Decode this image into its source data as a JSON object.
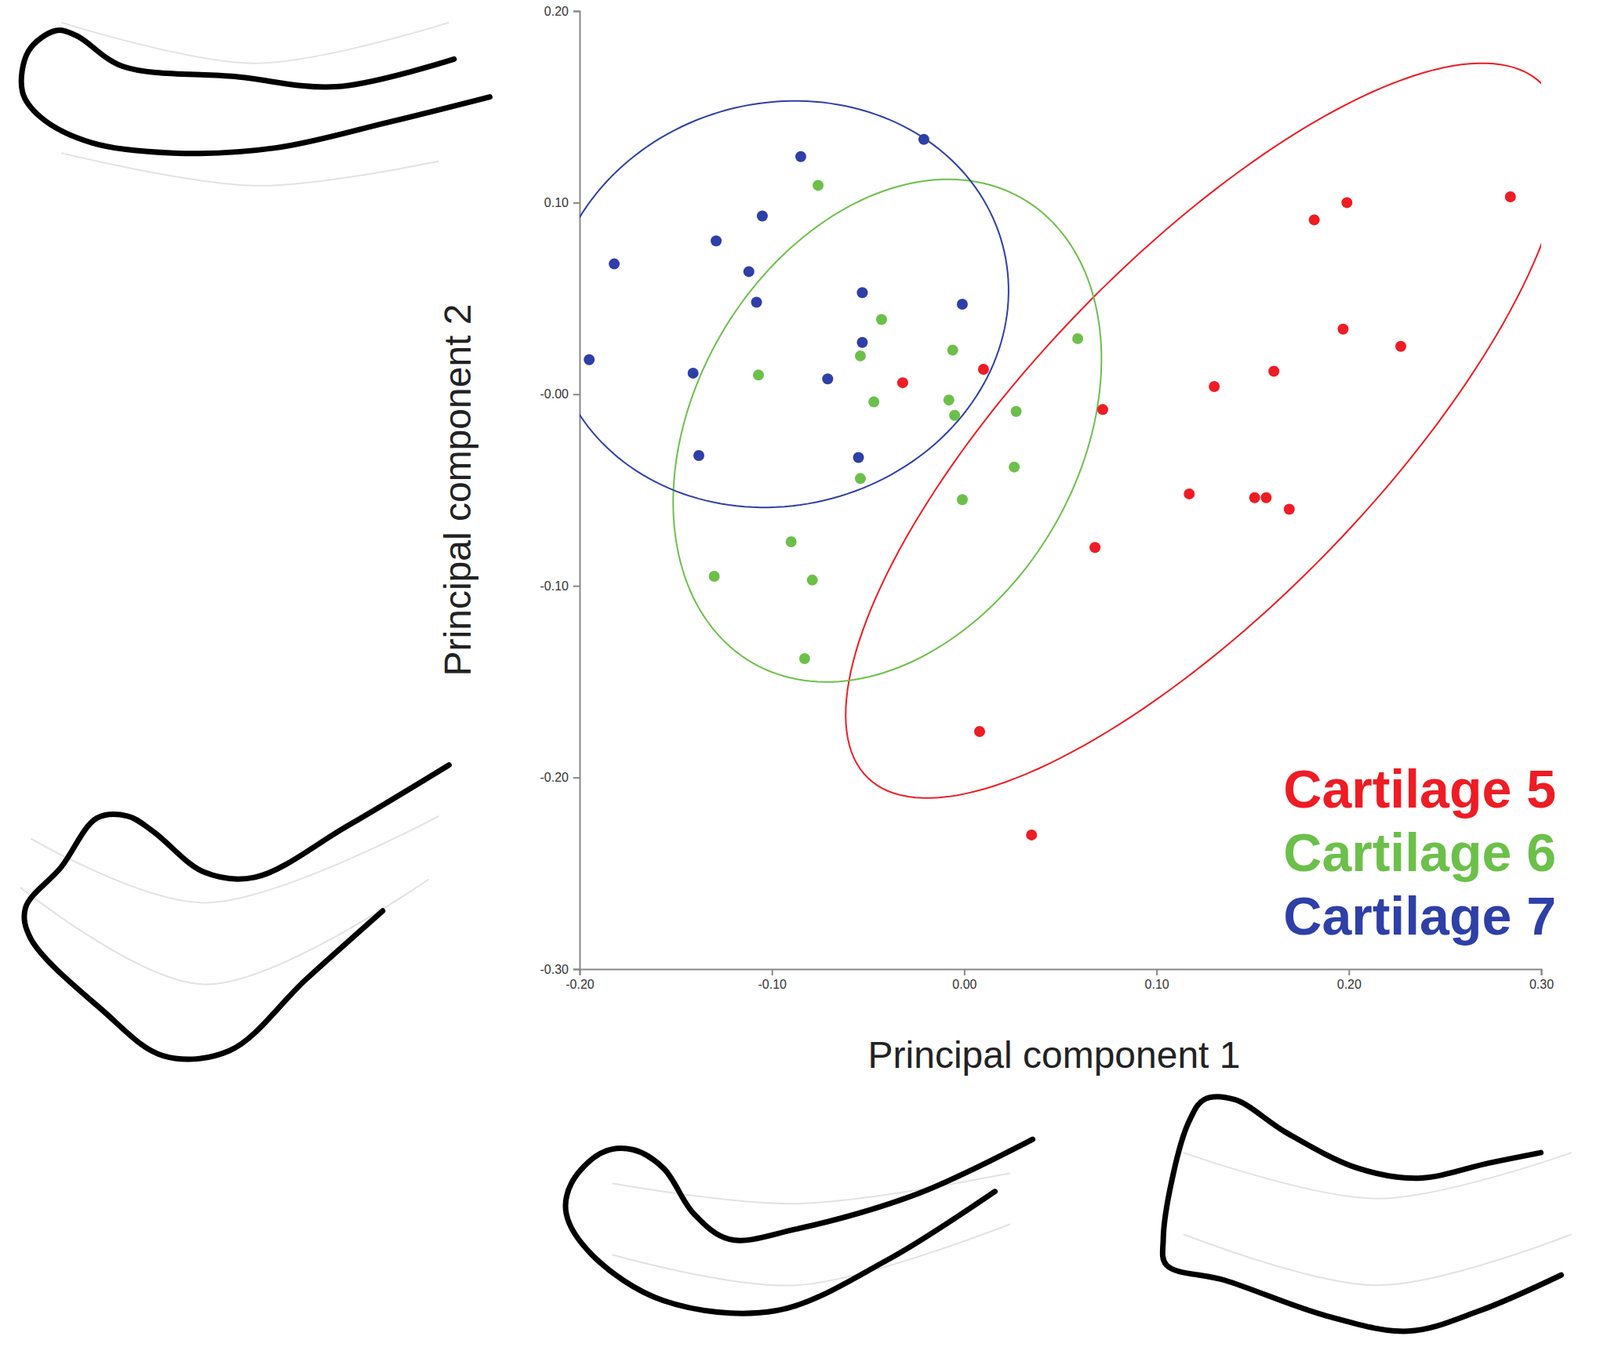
{
  "chart_data": {
    "type": "scatter",
    "x_label": "Principal component 1",
    "y_label": "Principal component 2",
    "xlim": [
      -0.2,
      0.3
    ],
    "ylim": [
      -0.3,
      0.2
    ],
    "xticks": [
      {
        "value": -0.2,
        "label": "-0.20"
      },
      {
        "value": -0.1,
        "label": "-0.10"
      },
      {
        "value": 0,
        "label": "0.00"
      },
      {
        "value": 0.1,
        "label": "0.10"
      },
      {
        "value": 0.2,
        "label": "0.20"
      },
      {
        "value": 0.3,
        "label": "0.30"
      }
    ],
    "yticks": [
      {
        "value": -0.3,
        "label": "-0.30"
      },
      {
        "value": -0.2,
        "label": "-0.20"
      },
      {
        "value": -0.1,
        "label": "-0.10"
      },
      {
        "value": 0,
        "label": "-0.00"
      },
      {
        "value": 0.1,
        "label": "0.10"
      },
      {
        "value": 0.2,
        "label": "0.20"
      }
    ],
    "grid": false,
    "legend": "lower right",
    "series": [
      {
        "name": "Cartilage 5",
        "color": "#ee1c24",
        "marker": "circle",
        "x": [
          0.284,
          0.182,
          0.199,
          0.197,
          0.227,
          0.161,
          0.13,
          0.01,
          -0.032,
          0.072,
          0.117,
          0.151,
          0.157,
          0.169,
          0.068,
          0.008,
          0.035
        ],
        "values": [
          0.103,
          0.091,
          0.1,
          0.034,
          0.025,
          0.012,
          0.004,
          0.013,
          0.006,
          -0.008,
          -0.052,
          -0.054,
          -0.054,
          -0.06,
          -0.08,
          -0.176,
          -0.23
        ],
        "ellipse": {
          "center": [
            0.125,
            -0.019
          ],
          "semi_axes": [
            0.252,
            0.09
          ],
          "angle": 46
        }
      },
      {
        "name": "Cartilage 6",
        "color": "#6cc04a",
        "marker": "circle",
        "x": [
          -0.076,
          -0.043,
          -0.054,
          -0.006,
          0.059,
          -0.107,
          -0.047,
          -0.008,
          -0.005,
          0.027,
          -0.054,
          0.026,
          -0.001,
          -0.09,
          -0.13,
          -0.079,
          -0.083
        ],
        "values": [
          0.109,
          0.039,
          0.02,
          0.023,
          0.029,
          0.01,
          -0.004,
          -0.003,
          -0.011,
          -0.009,
          -0.044,
          -0.038,
          -0.055,
          -0.077,
          -0.095,
          -0.097,
          -0.138
        ],
        "ellipse": {
          "center": [
            -0.04,
            -0.019
          ],
          "semi_axes": [
            0.14,
            0.1
          ],
          "angle": 60
        }
      },
      {
        "name": "Cartilage 7",
        "color": "#2e3fa8",
        "marker": "circle",
        "x": [
          -0.021,
          -0.085,
          -0.105,
          -0.129,
          -0.112,
          -0.182,
          -0.108,
          -0.053,
          -0.001,
          -0.053,
          -0.195,
          -0.141,
          -0.071,
          -0.138,
          -0.055
        ],
        "values": [
          0.133,
          0.124,
          0.093,
          0.08,
          0.064,
          0.068,
          0.048,
          0.053,
          0.047,
          0.027,
          0.018,
          0.011,
          0.008,
          -0.032,
          -0.033
        ],
        "ellipse": {
          "center": [
            -0.096,
            0.047
          ],
          "semi_axes": [
            0.12,
            0.105
          ],
          "angle": 15
        }
      }
    ]
  }
}
